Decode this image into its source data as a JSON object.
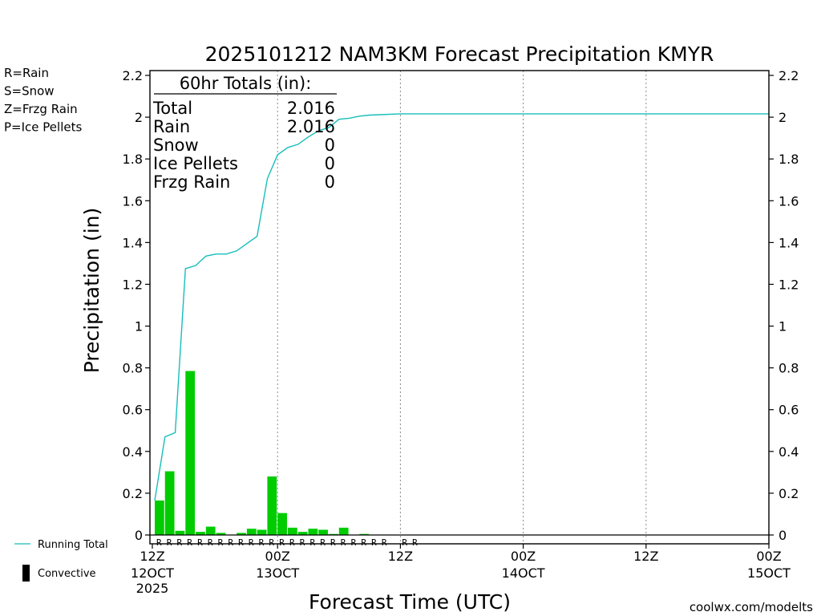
{
  "chart_data": {
    "type": "bar",
    "title": "2025101212 NAM3KM Forecast Precipitation KMYR",
    "xlabel": "Forecast Time (UTC)",
    "ylabel": "Precipitation (in)",
    "ylim": [
      0,
      2.2
    ],
    "yticks": [
      0,
      0.2,
      0.4,
      0.6,
      0.8,
      1,
      1.2,
      1.4,
      1.6,
      1.8,
      2,
      2.2
    ],
    "ytick_labels": [
      "0",
      "0.2",
      "0.4",
      "0.6",
      "0.8",
      "1",
      "1.2",
      "1.4",
      "1.6",
      "1.8",
      "2",
      "2.2"
    ],
    "xlim_hours": [
      0,
      60
    ],
    "xticks": [
      {
        "hour": 0,
        "label1": "12Z",
        "label2": "12OCT",
        "label3": "2025"
      },
      {
        "hour": 12,
        "label1": "00Z",
        "label2": "13OCT",
        "label3": ""
      },
      {
        "hour": 24,
        "label1": "12Z",
        "label2": "",
        "label3": ""
      },
      {
        "hour": 36,
        "label1": "00Z",
        "label2": "14OCT",
        "label3": ""
      },
      {
        "hour": 48,
        "label1": "12Z",
        "label2": "",
        "label3": ""
      },
      {
        "hour": 60,
        "label1": "00Z",
        "label2": "15OCT",
        "label3": ""
      }
    ],
    "hourly_precip": [
      0.165,
      0.305,
      0.02,
      0.785,
      0.015,
      0.04,
      0.01,
      0,
      0.01,
      0.03,
      0.025,
      0.28,
      0.105,
      0.035,
      0.015,
      0.03,
      0.025,
      0.005,
      0.035,
      0,
      0.005
    ],
    "running_total": [
      {
        "hour": 0,
        "value": 0.165
      },
      {
        "hour": 1,
        "value": 0.47
      },
      {
        "hour": 2,
        "value": 0.49
      },
      {
        "hour": 3,
        "value": 1.275
      },
      {
        "hour": 4,
        "value": 1.29
      },
      {
        "hour": 5,
        "value": 1.335
      },
      {
        "hour": 6,
        "value": 1.345
      },
      {
        "hour": 7,
        "value": 1.345
      },
      {
        "hour": 8,
        "value": 1.36
      },
      {
        "hour": 9,
        "value": 1.395
      },
      {
        "hour": 10,
        "value": 1.43
      },
      {
        "hour": 11,
        "value": 1.705
      },
      {
        "hour": 12,
        "value": 1.82
      },
      {
        "hour": 13,
        "value": 1.855
      },
      {
        "hour": 14,
        "value": 1.87
      },
      {
        "hour": 15,
        "value": 1.905
      },
      {
        "hour": 16,
        "value": 1.935
      },
      {
        "hour": 17,
        "value": 1.95
      },
      {
        "hour": 18,
        "value": 1.99
      },
      {
        "hour": 19,
        "value": 1.995
      },
      {
        "hour": 20,
        "value": 2.005
      },
      {
        "hour": 21,
        "value": 2.01
      },
      {
        "hour": 22,
        "value": 2.012
      },
      {
        "hour": 24,
        "value": 2.016
      },
      {
        "hour": 60,
        "value": 2.016
      }
    ],
    "ptype_markers": {
      "symbol": "R",
      "count": 26
    },
    "series_colors": {
      "rain": "#00cc00",
      "running_total": "#17bebb",
      "convective": "#000000"
    },
    "totals_box": {
      "header": "60hr Totals (in):",
      "rows": [
        {
          "label": "Total",
          "value": "2.016"
        },
        {
          "label": "Rain",
          "value": "2.016"
        },
        {
          "label": "Snow",
          "value": "0"
        },
        {
          "label": "Ice Pellets",
          "value": "0"
        },
        {
          "label": "Frzg Rain",
          "value": "0"
        }
      ]
    },
    "ptype_legend": [
      {
        "label": "R=Rain",
        "color": "#00cc00"
      },
      {
        "label": "S=Snow",
        "color": "#3a4fd6"
      },
      {
        "label": "Z=Frzg Rain",
        "color": "#f08a24"
      },
      {
        "label": "P=Ice Pellets",
        "color": "#e0258a"
      }
    ],
    "series_legend": [
      {
        "label": "Running Total",
        "kind": "line",
        "color": "#17bebb"
      },
      {
        "label": "Convective",
        "kind": "bar",
        "color": "#000000"
      }
    ]
  },
  "credit": "coolwx.com/modelts",
  "colors": {
    "credit": "#e0258a",
    "axis": "#000000",
    "grid": "#888888"
  }
}
